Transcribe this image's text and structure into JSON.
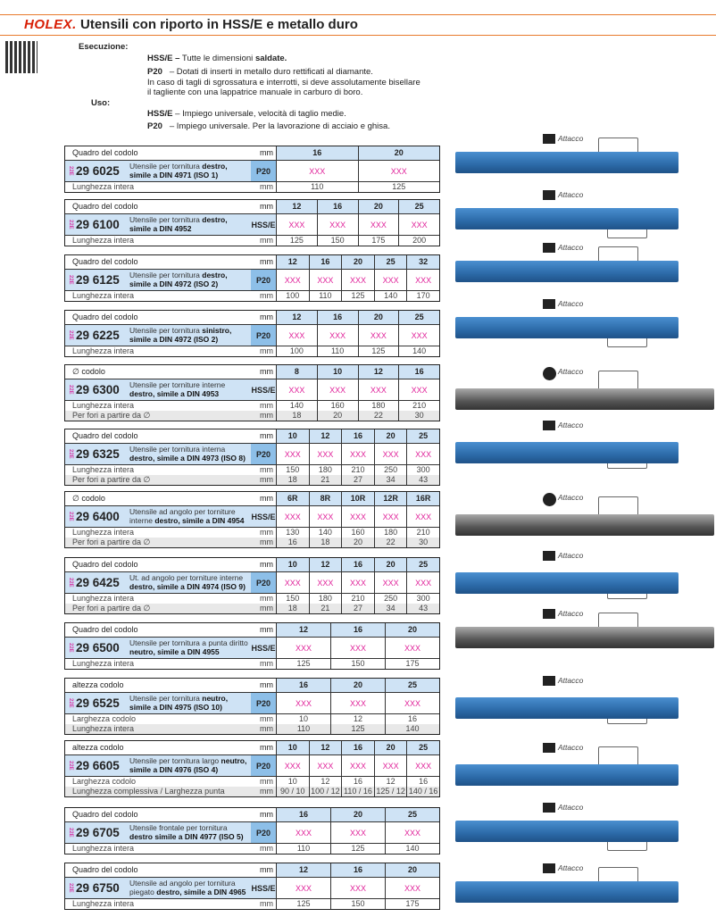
{
  "header": {
    "logo": "HOLEX.",
    "title": "Utensili con riporto in HSS/E e metallo duro"
  },
  "intro": {
    "esecuzione_label": "Esecuzione:",
    "exec_hss_code": "HSS/E –",
    "exec_hss_text": "Tutte le dimensioni ",
    "exec_hss_bold": "saldate.",
    "exec_p20_code": "P20",
    "exec_p20_text": "– Dotati di inserti in metallo duro rettificati al diamante.",
    "exec_p20_line2": "In caso di tagli di sgrossatura e interrotti, si deve assolutamente bisellare",
    "exec_p20_line3": "il tagliente con una lappatrice manuale in carburo di boro.",
    "uso_label": "Uso:",
    "uso_hss_code": "HSS/E",
    "uso_hss_text": "– Impiego universale, velocità di taglio medie.",
    "uso_p20_code": "P20",
    "uso_p20_text": "– Impiego universale. Per la lavorazione di acciaio e ghisa."
  },
  "attacco_label": "Attacco",
  "unit": "mm",
  "price_placeholder": "XXX",
  "products": [
    {
      "header": "Quadro del codolo",
      "sizes": [
        "16",
        "20"
      ],
      "number": "29 6025",
      "desc": "Utensile per tornitura ",
      "desc_bold": "destro, simile a DIN 4971 (ISO 1)",
      "grade": "P20",
      "extra": [
        {
          "label": "Lunghezza intera",
          "values": [
            "110",
            "125"
          ]
        }
      ],
      "color": "blue"
    },
    {
      "header": "Quadro del codolo",
      "sizes": [
        "12",
        "16",
        "20",
        "25"
      ],
      "number": "29 6100",
      "desc": "Utensile per tornitura ",
      "desc_bold": "destro, simile a DIN 4952",
      "grade": "HSS/E",
      "extra": [
        {
          "label": "Lunghezza intera",
          "values": [
            "125",
            "150",
            "175",
            "200"
          ]
        }
      ],
      "color": "blue"
    },
    {
      "header": "Quadro del codolo",
      "sizes": [
        "12",
        "16",
        "20",
        "25",
        "32"
      ],
      "number": "29 6125",
      "desc": "Utensile per tornitura ",
      "desc_bold": "destro, simile a DIN 4972 (ISO 2)",
      "grade": "P20",
      "extra": [
        {
          "label": "Lunghezza intera",
          "values": [
            "100",
            "110",
            "125",
            "140",
            "170"
          ]
        }
      ],
      "color": "blue"
    },
    {
      "header": "Quadro del codolo",
      "sizes": [
        "12",
        "16",
        "20",
        "25"
      ],
      "number": "29 6225",
      "desc": "Utensile per tornitura ",
      "desc_bold": "sinistro, simile a DIN 4972 (ISO 2)",
      "grade": "P20",
      "extra": [
        {
          "label": "Lunghezza intera",
          "values": [
            "100",
            "110",
            "125",
            "140"
          ]
        }
      ],
      "color": "blue"
    },
    {
      "header": "∅ codolo",
      "sizes": [
        "8",
        "10",
        "12",
        "16"
      ],
      "number": "29 6300",
      "desc": "Utensile per torniture interne ",
      "desc_bold": "destro, simile a DIN 4953",
      "grade": "HSS/E",
      "extra": [
        {
          "label": "Lunghezza intera",
          "values": [
            "140",
            "160",
            "180",
            "210"
          ]
        },
        {
          "label": "Per fori a partire da ∅",
          "values": [
            "18",
            "20",
            "22",
            "30"
          ]
        }
      ],
      "color": "grey"
    },
    {
      "header": "Quadro del codolo",
      "sizes": [
        "10",
        "12",
        "16",
        "20",
        "25"
      ],
      "number": "29 6325",
      "desc": "Utensile per tornitura interna ",
      "desc_bold": "destro, simile a DIN 4973 (ISO 8)",
      "grade": "P20",
      "extra": [
        {
          "label": "Lunghezza intera",
          "values": [
            "150",
            "180",
            "210",
            "250",
            "300"
          ]
        },
        {
          "label": "Per fori a partire da ∅",
          "values": [
            "18",
            "21",
            "27",
            "34",
            "43"
          ]
        }
      ],
      "color": "blue"
    },
    {
      "header": "∅ codolo",
      "sizes": [
        "6R",
        "8R",
        "10R",
        "12R",
        "16R"
      ],
      "number": "29 6400",
      "desc": "Utensile ad angolo per torniture interne ",
      "desc_bold": "destro, simile a DIN 4954",
      "grade": "HSS/E",
      "extra": [
        {
          "label": "Lunghezza intera",
          "values": [
            "130",
            "140",
            "160",
            "180",
            "210"
          ]
        },
        {
          "label": "Per fori a partire da ∅",
          "values": [
            "16",
            "18",
            "20",
            "22",
            "30"
          ]
        }
      ],
      "color": "grey"
    },
    {
      "header": "Quadro del codolo",
      "sizes": [
        "10",
        "12",
        "16",
        "20",
        "25"
      ],
      "number": "29 6425",
      "desc": "Ut. ad angolo per torniture interne ",
      "desc_bold": "destro, simile a DIN 4974 (ISO 9)",
      "grade": "P20",
      "extra": [
        {
          "label": "Lunghezza intera",
          "values": [
            "150",
            "180",
            "210",
            "250",
            "300"
          ]
        },
        {
          "label": "Per fori a partire da ∅",
          "values": [
            "18",
            "21",
            "27",
            "34",
            "43"
          ]
        }
      ],
      "color": "blue"
    },
    {
      "header": "Quadro del codolo",
      "sizes": [
        "12",
        "16",
        "20"
      ],
      "number": "29 6500",
      "desc": "Utensile per tornitura a punta diritto ",
      "desc_bold": "neutro, simile a DIN 4955",
      "grade": "HSS/E",
      "extra": [
        {
          "label": "Lunghezza intera",
          "values": [
            "125",
            "150",
            "175"
          ]
        }
      ],
      "color": "grey"
    },
    {
      "header": "altezza codolo",
      "sizes": [
        "16",
        "20",
        "25"
      ],
      "number": "29 6525",
      "desc": "Utensile per tornitura ",
      "desc_bold": "neutro, simile a DIN 4975 (ISO 10)",
      "grade": "P20",
      "extra": [
        {
          "label": "Larghezza codolo",
          "values": [
            "10",
            "12",
            "16"
          ]
        },
        {
          "label": "Lunghezza intera",
          "values": [
            "110",
            "125",
            "140"
          ]
        }
      ],
      "color": "blue"
    },
    {
      "header": "altezza codolo",
      "sizes": [
        "10",
        "12",
        "16",
        "20",
        "25"
      ],
      "number": "29 6605",
      "desc": "Utensile per tornitura largo ",
      "desc_bold": "neutro, simile a DIN 4976 (ISO 4)",
      "grade": "P20",
      "extra": [
        {
          "label": "Larghezza codolo",
          "values": [
            "10",
            "12",
            "16",
            "12",
            "16"
          ]
        },
        {
          "label": "Lunghezza complessiva / Larghezza punta",
          "values": [
            "90 / 10",
            "100 / 12",
            "110 / 16",
            "125 / 12",
            "140 / 16"
          ]
        }
      ],
      "color": "blue"
    },
    {
      "header": "Quadro del codolo",
      "sizes": [
        "16",
        "20",
        "25"
      ],
      "number": "29 6705",
      "desc": "Utensile frontale per tornitura ",
      "desc_bold": "destro simile a DIN 4977 (ISO 5)",
      "grade": "P20",
      "extra": [
        {
          "label": "Lunghezza intera",
          "values": [
            "110",
            "125",
            "140"
          ]
        }
      ],
      "color": "blue"
    },
    {
      "header": "Quadro del codolo",
      "sizes": [
        "12",
        "16",
        "20"
      ],
      "number": "29 6750",
      "desc": "Utensile ad angolo per tornitura piegato ",
      "desc_bold": "destro, simile a DIN 4965",
      "grade": "HSS/E",
      "extra": [
        {
          "label": "Lunghezza intera",
          "values": [
            "125",
            "150",
            "175"
          ]
        }
      ],
      "color": "blue"
    }
  ]
}
